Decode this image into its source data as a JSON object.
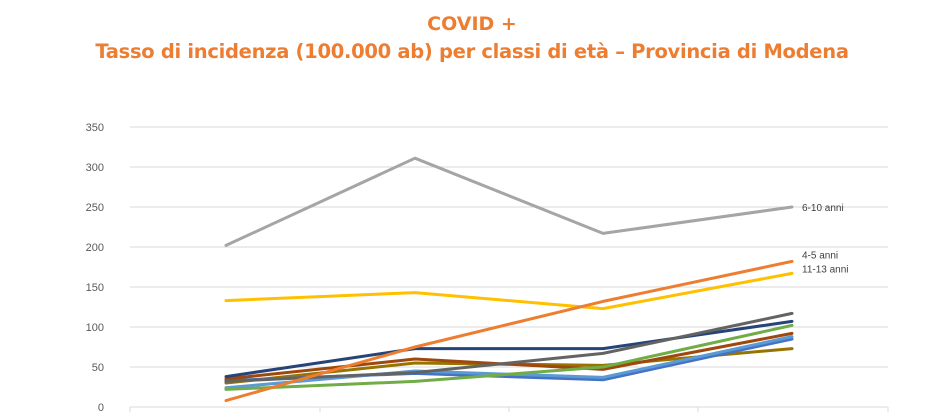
{
  "chart_data": {
    "type": "line",
    "title": "COVID +",
    "subtitle": "Tasso di incidenza (100.000 ab) per classi di età – Provincia di Modena",
    "xlabel": "",
    "ylabel": "",
    "ylim": [
      0,
      350
    ],
    "yticks": [
      0,
      50,
      100,
      150,
      200,
      250,
      300,
      350
    ],
    "grid": true,
    "x": [
      1,
      2,
      3,
      4
    ],
    "series": [
      {
        "label": "6-10 anni",
        "color": "#A5A5A5",
        "values": [
          202,
          311,
          217,
          250
        ]
      },
      {
        "label": "4-5 anni",
        "color": "#ED7D31",
        "values": [
          8,
          75,
          132,
          182
        ]
      },
      {
        "label": "11-13 anni",
        "color": "#FFC000",
        "values": [
          133,
          143,
          123,
          167
        ]
      },
      {
        "label": "",
        "color": "#636363",
        "values": [
          32,
          43,
          67,
          117
        ]
      },
      {
        "label": "",
        "color": "#264478",
        "values": [
          38,
          73,
          73,
          107
        ]
      },
      {
        "label": "",
        "color": "#70AD47",
        "values": [
          22,
          32,
          50,
          102
        ]
      },
      {
        "label": "",
        "color": "#9E480E",
        "values": [
          35,
          60,
          47,
          92
        ]
      },
      {
        "label": "",
        "color": "#5B9BD5",
        "values": [
          24,
          45,
          37,
          88
        ]
      },
      {
        "label": "",
        "color": "#4472C4",
        "values": [
          33,
          42,
          34,
          85
        ]
      },
      {
        "label": "",
        "color": "#997300",
        "values": [
          30,
          55,
          52,
          73
        ]
      }
    ]
  }
}
